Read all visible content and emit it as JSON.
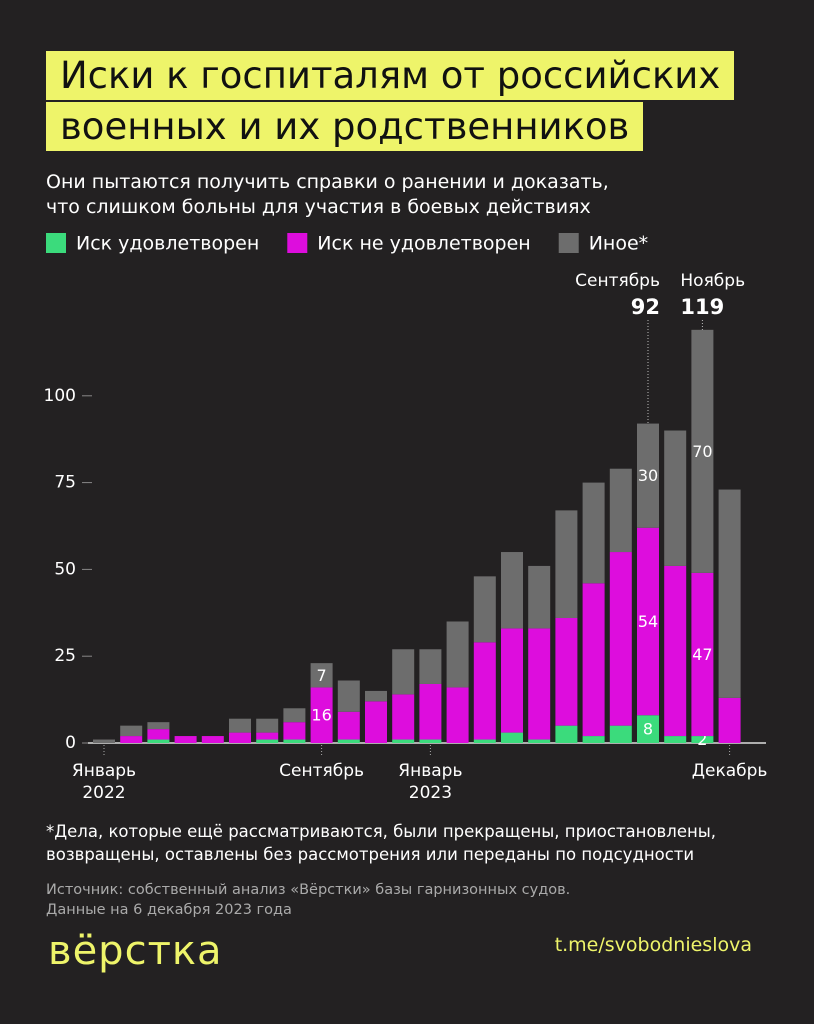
{
  "chart_data": {
    "type": "stacked-bar",
    "title": "Иски к госпиталям от российских\nвоенных и их родственников",
    "subtitle": "Они пытаются получить справки о ранении и доказать,\nчто слишком больны для участия в боевых действиях",
    "categories": [
      "Январь\n2022",
      null,
      null,
      null,
      null,
      null,
      null,
      null,
      "Сентябрь",
      null,
      null,
      null,
      "Январь\n2023",
      null,
      null,
      null,
      null,
      null,
      null,
      null,
      null,
      null,
      null,
      "Декабрь"
    ],
    "series": [
      {
        "name": "Иск удовлетворен",
        "color": "#3bdb7c",
        "values": [
          0,
          0,
          1,
          0,
          0,
          0,
          1,
          1,
          0,
          1,
          0,
          1,
          1,
          0,
          1,
          3,
          1,
          5,
          2,
          5,
          8,
          2,
          2,
          0
        ],
        "value_labels": [
          null,
          null,
          null,
          null,
          null,
          null,
          null,
          null,
          null,
          null,
          null,
          null,
          null,
          null,
          null,
          null,
          null,
          null,
          null,
          null,
          "8",
          null,
          "2",
          null
        ]
      },
      {
        "name": "Иск не удовлетворен",
        "color": "#dd0ddd",
        "values": [
          0,
          2,
          3,
          2,
          2,
          3,
          2,
          5,
          16,
          8,
          12,
          13,
          16,
          16,
          28,
          30,
          32,
          31,
          44,
          50,
          54,
          49,
          47,
          13
        ],
        "value_labels": [
          null,
          null,
          null,
          null,
          null,
          null,
          null,
          null,
          "16",
          null,
          null,
          null,
          null,
          null,
          null,
          null,
          null,
          null,
          null,
          null,
          "54",
          null,
          "47",
          null
        ]
      },
      {
        "name": "Иное*",
        "color": "#6d6d6d",
        "values": [
          1,
          3,
          2,
          0,
          0,
          4,
          4,
          4,
          7,
          9,
          3,
          13,
          10,
          19,
          19,
          22,
          18,
          31,
          29,
          24,
          30,
          39,
          70,
          60
        ],
        "value_labels": [
          null,
          null,
          null,
          null,
          null,
          null,
          null,
          null,
          "7",
          null,
          null,
          null,
          null,
          null,
          null,
          null,
          null,
          null,
          null,
          null,
          "30",
          null,
          "70",
          null
        ]
      }
    ],
    "annotations": [
      {
        "label": "Сентябрь",
        "value": 92
      },
      {
        "label": "Ноябрь",
        "value": 119
      }
    ],
    "ylim": [
      0,
      125
    ],
    "yticks": [
      0,
      25,
      50,
      75,
      100
    ],
    "footnote": "*Дела, которые ещё рассматриваются, были прекращены, приостановлены,\n  возвращены, оставлены без рассмотрения или переданы по подсудности",
    "source": "Источник: собственный анализ «Вёрстки» базы гарнизонных судов.\nДанные на 6 декабря 2023 года"
  },
  "logo": "вёрстка",
  "link": "t.me/svobodnieslova"
}
